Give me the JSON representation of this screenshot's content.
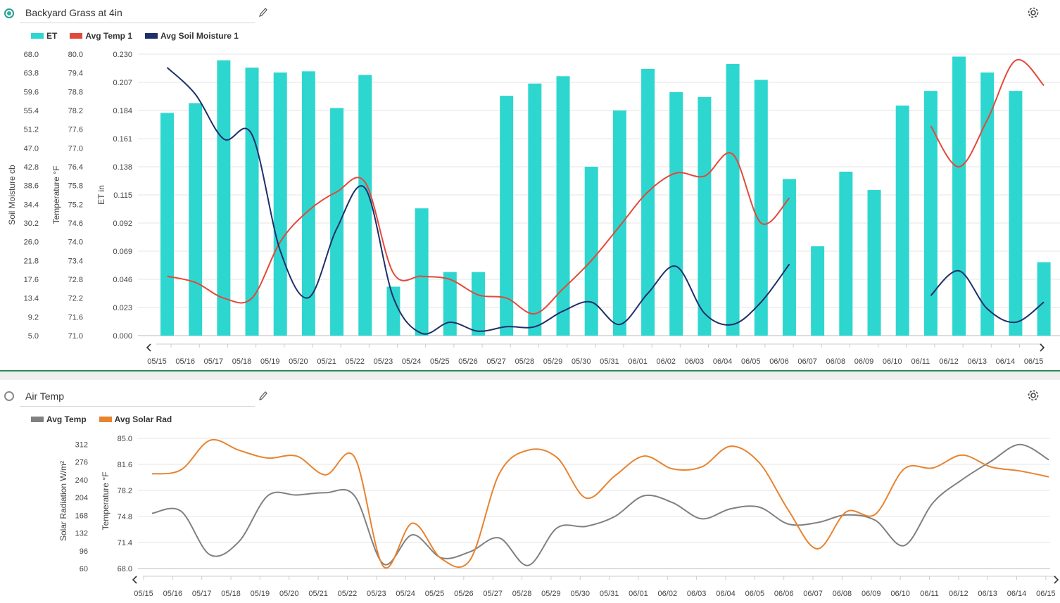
{
  "colors": {
    "et": "#2ed6d0",
    "temp": "#e2493b",
    "soil": "#1e2f6b",
    "air": "#808080",
    "solar": "#e8832f"
  },
  "panel1": {
    "title": "Backyard Grass at 4in",
    "edit_icon": "pencil-icon",
    "settings_icon": "gear-icon",
    "legend": [
      "ET",
      "Avg Temp 1",
      "Avg Soil Moisture 1"
    ],
    "chart_data": {
      "type": "bar+line",
      "categories": [
        "05/15",
        "05/16",
        "05/17",
        "05/18",
        "05/19",
        "05/20",
        "05/21",
        "05/22",
        "05/23",
        "05/24",
        "05/25",
        "05/26",
        "05/27",
        "05/28",
        "05/29",
        "05/30",
        "05/31",
        "06/01",
        "06/02",
        "06/03",
        "06/04",
        "06/05",
        "06/06",
        "06/07",
        "06/08",
        "06/09",
        "06/10",
        "06/11",
        "06/12",
        "06/13",
        "06/14",
        "06/15"
      ],
      "y_axes": [
        {
          "label": "Soil Moisture cb",
          "ticks": [
            "68.0",
            "63.8",
            "59.6",
            "55.4",
            "51.2",
            "47.0",
            "42.8",
            "38.6",
            "34.4",
            "30.2",
            "26.0",
            "21.8",
            "17.6",
            "13.4",
            "9.2",
            "5.0"
          ],
          "range": [
            5.0,
            68.0
          ]
        },
        {
          "label": "Temperature °F",
          "ticks": [
            "80.0",
            "79.4",
            "78.8",
            "78.2",
            "77.6",
            "77.0",
            "76.4",
            "75.8",
            "75.2",
            "74.6",
            "74.0",
            "73.4",
            "72.8",
            "72.2",
            "71.6",
            "71.0"
          ],
          "range": [
            71.0,
            80.0
          ]
        },
        {
          "label": "ET in",
          "ticks": [
            "0.230",
            "0.207",
            "0.184",
            "0.161",
            "0.138",
            "0.115",
            "0.092",
            "0.069",
            "0.046",
            "0.023",
            "0.000"
          ],
          "range": [
            0.0,
            0.23
          ]
        }
      ],
      "series": [
        {
          "name": "ET",
          "kind": "bar",
          "values": [
            0.182,
            0.19,
            0.225,
            0.219,
            0.215,
            0.216,
            0.186,
            0.213,
            0.04,
            0.104,
            0.052,
            0.052,
            0.196,
            0.206,
            0.212,
            0.138,
            0.184,
            0.218,
            0.199,
            0.195,
            0.222,
            0.209,
            0.128,
            0.073,
            0.134,
            0.119,
            0.188,
            0.2,
            0.228,
            0.215,
            0.2,
            0.06
          ]
        },
        {
          "name": "Avg Temp 1",
          "kind": "line",
          "values": [
            72.9,
            72.7,
            72.2,
            72.2,
            74.0,
            75.0,
            75.6,
            75.9,
            73.0,
            72.9,
            72.8,
            72.3,
            72.2,
            71.7,
            72.5,
            73.4,
            74.5,
            75.6,
            76.2,
            76.1,
            76.8,
            74.6,
            75.4,
            null,
            null,
            null,
            null,
            77.7,
            76.4,
            77.9,
            79.8,
            79.0
          ]
        },
        {
          "name": "Avg Soil Moisture 1",
          "kind": "line",
          "values": [
            65.0,
            59.0,
            49.0,
            50.0,
            24.0,
            13.5,
            29.0,
            38.0,
            13.5,
            5.5,
            8.0,
            6.0,
            7.0,
            7.0,
            10.5,
            12.5,
            7.5,
            14.5,
            20.5,
            10.0,
            7.5,
            12.5,
            21.0,
            null,
            null,
            null,
            null,
            14.0,
            19.5,
            11.0,
            8.0,
            12.5
          ]
        }
      ]
    }
  },
  "panel2": {
    "title": "Air Temp",
    "edit_icon": "pencil-icon",
    "settings_icon": "gear-icon",
    "legend": [
      "Avg Temp",
      "Avg Solar Rad"
    ],
    "chart_data": {
      "type": "line",
      "categories": [
        "05/15",
        "05/16",
        "05/17",
        "05/18",
        "05/19",
        "05/20",
        "05/21",
        "05/22",
        "05/23",
        "05/24",
        "05/25",
        "05/26",
        "05/27",
        "05/28",
        "05/29",
        "05/30",
        "05/31",
        "06/01",
        "06/02",
        "06/03",
        "06/04",
        "06/05",
        "06/06",
        "06/07",
        "06/08",
        "06/09",
        "06/10",
        "06/11",
        "06/12",
        "06/13",
        "06/14",
        "06/15"
      ],
      "y_axes": [
        {
          "label": "Solar Radiation W/m²",
          "ticks": [
            "312",
            "276",
            "240",
            "204",
            "168",
            "132",
            "96",
            "60"
          ],
          "range": [
            60,
            324
          ]
        },
        {
          "label": "Temperature °F",
          "ticks": [
            "85.0",
            "81.6",
            "78.2",
            "74.8",
            "71.4",
            "68.0"
          ],
          "range": [
            68.0,
            85.0
          ]
        }
      ],
      "series": [
        {
          "name": "Avg Temp",
          "values": [
            75.2,
            75.5,
            69.8,
            71.5,
            77.5,
            77.6,
            77.9,
            77.5,
            68.6,
            72.4,
            69.4,
            70.2,
            72.0,
            68.4,
            73.3,
            73.5,
            74.8,
            77.5,
            76.6,
            74.5,
            75.8,
            76.0,
            73.8,
            74.0,
            75.0,
            74.3,
            71.0,
            76.6,
            79.6,
            82.0,
            84.2,
            82.2
          ]
        },
        {
          "name": "Avg Solar Rad",
          "values": [
            252,
            260,
            320,
            300,
            284,
            288,
            250,
            286,
            64,
            152,
            80,
            78,
            252,
            300,
            285,
            203,
            248,
            288,
            262,
            266,
            308,
            274,
            178,
            100,
            175,
            170,
            262,
            264,
            290,
            266,
            258,
            246
          ]
        }
      ]
    }
  },
  "nav": {
    "prev_icon": "chevron-left-icon",
    "next_icon": "chevron-right-icon"
  }
}
